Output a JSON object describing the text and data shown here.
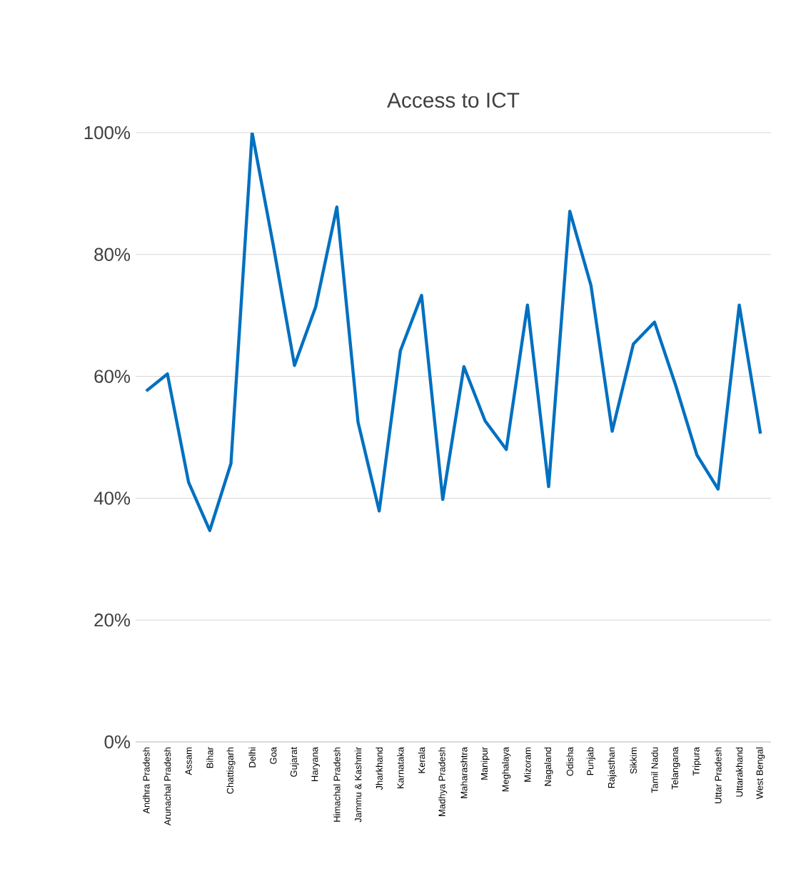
{
  "chart_data": {
    "type": "line",
    "title": "Access to ICT",
    "categories": [
      "Andhra Pradesh",
      "Arunachal Pradesh",
      "Assam",
      "Bihar",
      "Chattisgarh",
      "Delhi",
      "Goa",
      "Gujarat",
      "Haryana",
      "Himachal Pradesh",
      "Jammu & Kashmir",
      "Jharkhand",
      "Karnataka",
      "Kerala",
      "Madhya Pradesh",
      "Maharashtra",
      "Manipur",
      "Meghalaya",
      "Mizoram",
      "Nagaland",
      "Odisha",
      "Punjab",
      "Rajasthan",
      "Sikkim",
      "Tamil Nadu",
      "Telangana",
      "Tripura",
      "Uttar Pradesh",
      "Uttarakhand",
      "West Bengal"
    ],
    "series": [
      {
        "color": "#0070c0",
        "values": [
          57.6,
          60.4,
          42.6,
          34.7,
          45.7,
          100,
          81.5,
          61.8,
          71.4,
          87.8,
          52.5,
          37.9,
          64.2,
          73.3,
          39.8,
          61.6,
          52.7,
          48,
          71.7,
          41.9,
          87.1,
          74.9,
          51,
          65.3,
          68.9,
          58.5,
          47.1,
          41.5,
          71.7,
          50.6
        ]
      }
    ],
    "ylim": [
      0,
      100
    ],
    "yticks": [
      {
        "value": 0,
        "label": "0%"
      },
      {
        "value": 20,
        "label": "20%"
      },
      {
        "value": 40,
        "label": "40%"
      },
      {
        "value": 60,
        "label": "60%"
      },
      {
        "value": 80,
        "label": "80%"
      },
      {
        "value": 100,
        "label": "100%"
      }
    ],
    "grid": "y",
    "marker": "none",
    "line_style": "solid"
  }
}
